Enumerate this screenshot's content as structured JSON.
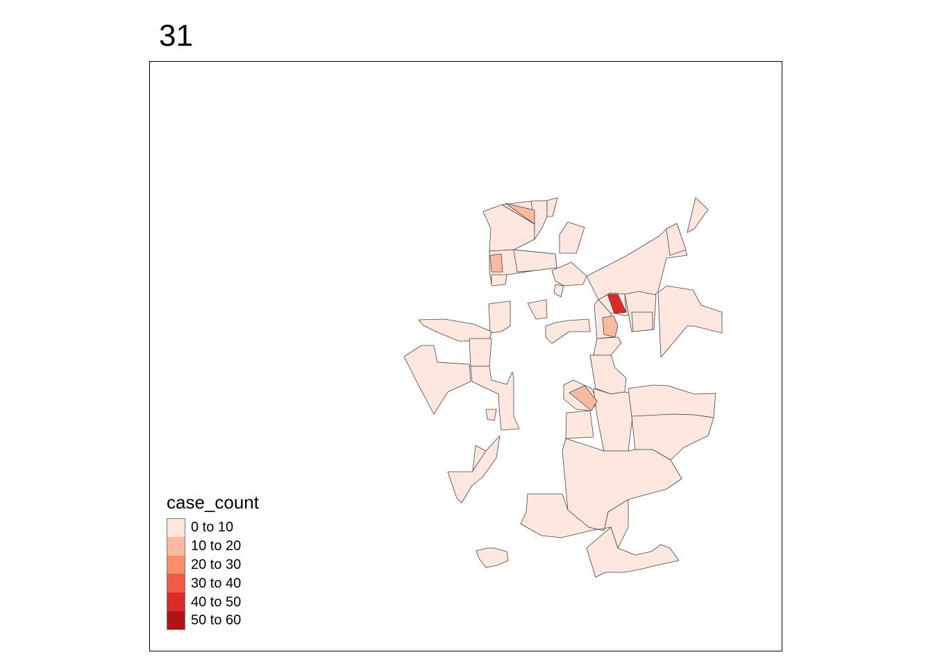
{
  "title": "31",
  "legend": {
    "title": "case_count",
    "classes": [
      {
        "label": "0 to 10",
        "color": "#fde7df"
      },
      {
        "label": "10 to 20",
        "color": "#fcbba1"
      },
      {
        "label": "20 to 30",
        "color": "#fc8d6b"
      },
      {
        "label": "30 to 40",
        "color": "#f35a45"
      },
      {
        "label": "40 to 50",
        "color": "#db2a2a"
      },
      {
        "label": "50 to 60",
        "color": "#ae1318"
      }
    ]
  },
  "map_regions": {
    "default_class": "0 to 10",
    "highlighted": [
      {
        "class": "40 to 50"
      },
      {
        "class": "10 to 20"
      },
      {
        "class": "10 to 20"
      },
      {
        "class": "10 to 20"
      },
      {
        "class": "10 to 20"
      }
    ]
  }
}
